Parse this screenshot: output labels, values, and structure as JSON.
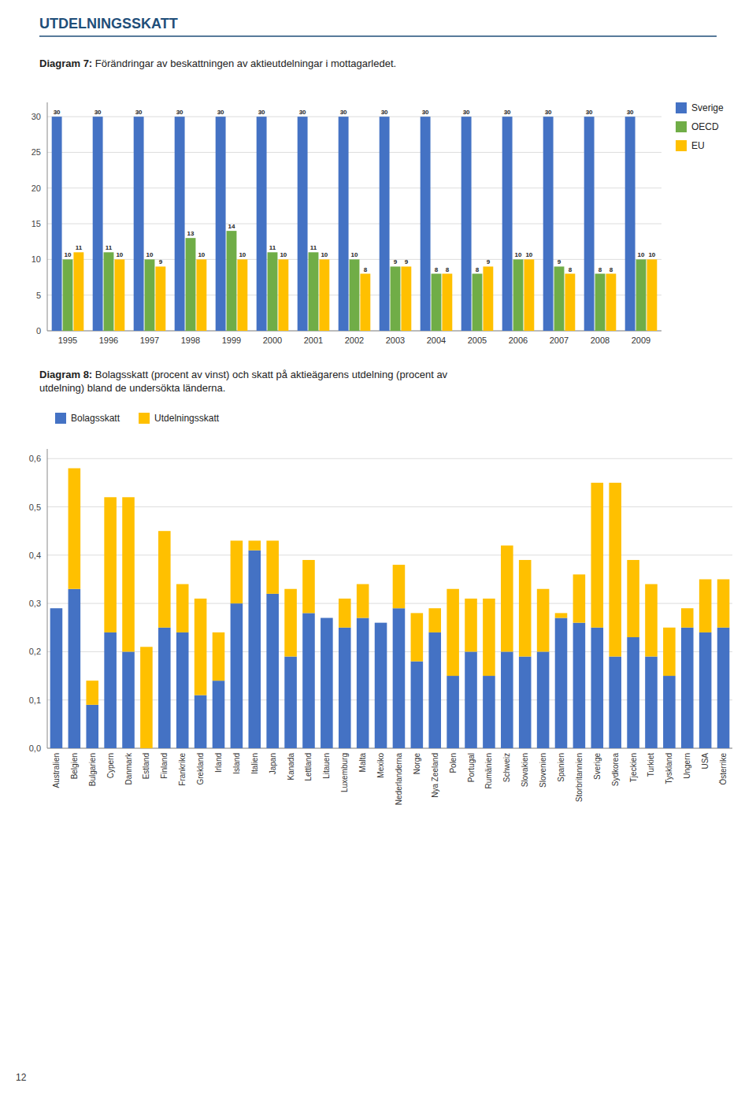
{
  "title": "UTDELNINGSSKATT",
  "page_number": 12,
  "chart_data": [
    {
      "type": "bar",
      "title": "Diagram 7: Förändringar av beskattningen av aktieutdelningar i mottagarledet.",
      "categories": [
        "1995",
        "1996",
        "1997",
        "1998",
        "1999",
        "2000",
        "2001",
        "2002",
        "2003",
        "2004",
        "2005",
        "2006",
        "2007",
        "2008",
        "2009"
      ],
      "series": [
        {
          "name": "Sverige",
          "color": "#4472C4",
          "values": [
            30,
            30,
            30,
            30,
            30,
            30,
            30,
            30,
            30,
            30,
            30,
            30,
            30,
            30,
            30
          ]
        },
        {
          "name": "OECD",
          "color": "#70AD47",
          "values": [
            10,
            11,
            10,
            13,
            14,
            11,
            11,
            10,
            9,
            8,
            8,
            10,
            9,
            8,
            10
          ]
        },
        {
          "name": "EU",
          "color": "#FFC000",
          "values": [
            11,
            10,
            9,
            10,
            10,
            10,
            10,
            8,
            9,
            8,
            9,
            10,
            8,
            8,
            10
          ]
        }
      ],
      "ylim": [
        0,
        32
      ],
      "yticks": [
        0,
        5,
        10,
        15,
        20,
        25,
        30
      ],
      "grid": true,
      "legend": "right",
      "data_labels": true
    },
    {
      "type": "bar",
      "title": "Diagram 8: Bolagsskatt (procent av vinst) och skatt på aktieägarens utdelning (procent av\nutdelning) bland de undersökta länderna.",
      "categories": [
        "Australien",
        "Belgien",
        "Bulgarien",
        "Cypern",
        "Danmark",
        "Estland",
        "Finland",
        "Frankrike",
        "Grekland",
        "Irland",
        "Island",
        "Italien",
        "Japan",
        "Kanada",
        "Lettland",
        "Litauen",
        "Luxemburg",
        "Malta",
        "Mexiko",
        "Nederlanderna",
        "Norge",
        "Nya Zeeland",
        "Polen",
        "Portugal",
        "Rumänien",
        "Schweiz",
        "Slovakien",
        "Slovenien",
        "Spanien",
        "Storbritannien",
        "Sverige",
        "Sydkorea",
        "Tjeckien",
        "Turkiet",
        "Tyskland",
        "Ungern",
        "USA",
        "Österrike"
      ],
      "series": [
        {
          "name": "Bolagsskatt",
          "color": "#4472C4",
          "values": [
            0.29,
            0.33,
            0.09,
            0.24,
            0.2,
            0.0,
            0.25,
            0.24,
            0.11,
            0.14,
            0.3,
            0.41,
            0.32,
            0.19,
            0.28,
            0.27,
            0.25,
            0.27,
            0.26,
            0.29,
            0.18,
            0.24,
            0.15,
            0.2,
            0.15,
            0.2,
            0.19,
            0.2,
            0.27,
            0.26,
            0.25,
            0.19,
            0.23,
            0.19,
            0.15,
            0.25,
            0.24,
            0.25
          ]
        },
        {
          "name": "Utdelningsskatt",
          "color": "#FFC000",
          "values": [
            0.0,
            0.25,
            0.05,
            0.28,
            0.32,
            0.21,
            0.2,
            0.1,
            0.2,
            0.1,
            0.13,
            0.02,
            0.11,
            0.14,
            0.11,
            0.0,
            0.06,
            0.07,
            0.0,
            0.09,
            0.1,
            0.05,
            0.18,
            0.11,
            0.16,
            0.22,
            0.2,
            0.13,
            0.01,
            0.1,
            0.3,
            0.36,
            0.16,
            0.15,
            0.1,
            0.04,
            0.11,
            0.1
          ]
        }
      ],
      "stacked": true,
      "ylim": [
        0,
        0.62
      ],
      "yticks": [
        {
          "value": 0.0,
          "label": "0,0"
        },
        {
          "value": 0.1,
          "label": "0,1"
        },
        {
          "value": 0.2,
          "label": "0,2"
        },
        {
          "value": 0.3,
          "label": "0,3"
        },
        {
          "value": 0.4,
          "label": "0,4"
        },
        {
          "value": 0.5,
          "label": "0,5"
        },
        {
          "value": 0.6,
          "label": "0,6"
        }
      ],
      "grid": true,
      "legend": "top"
    }
  ]
}
